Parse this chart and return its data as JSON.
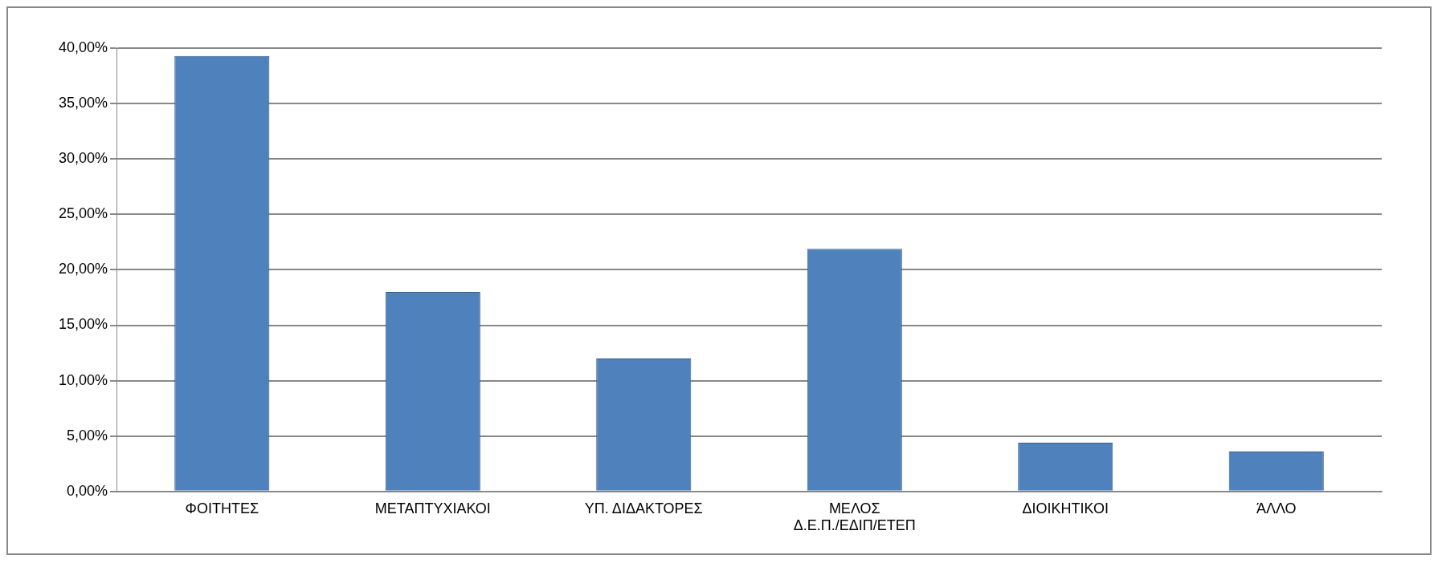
{
  "chart_data": {
    "type": "bar",
    "categories": [
      "ΦΟΙΤΗΤΕΣ",
      "ΜΕΤΑΠΤΥΧΙΑΚΟΙ",
      "ΥΠ. ΔΙΔΑΚΤΟΡΕΣ",
      "ΜΕΛΟΣ Δ.Ε.Π./ΕΔΙΠ/ΕΤΕΠ",
      "ΔΙΟΙΚΗΤΙΚΟΙ",
      "ΆΛΛΟ"
    ],
    "values": [
      39.3,
      18.0,
      12.0,
      21.9,
      4.4,
      3.6
    ],
    "color": "#4f81bd",
    "ylim": [
      0,
      40
    ],
    "yticks": [
      {
        "value": 0,
        "label": "0,00%"
      },
      {
        "value": 5,
        "label": "5,00%"
      },
      {
        "value": 10,
        "label": "10,00%"
      },
      {
        "value": 15,
        "label": "15,00%"
      },
      {
        "value": 20,
        "label": "20,00%"
      },
      {
        "value": 25,
        "label": "25,00%"
      },
      {
        "value": 30,
        "label": "30,00%"
      },
      {
        "value": 35,
        "label": "35,00%"
      },
      {
        "value": 40,
        "label": "40,00%"
      }
    ],
    "grid": "y",
    "legend": false
  }
}
